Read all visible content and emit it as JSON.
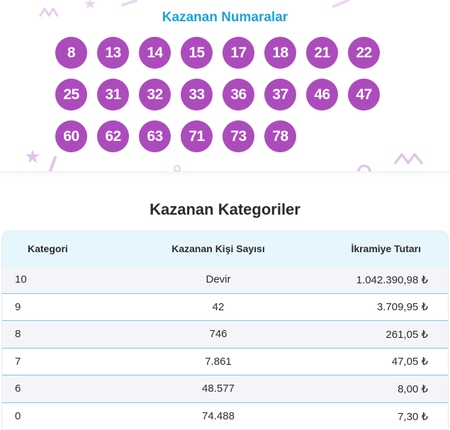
{
  "winning_numbers": {
    "title": "Kazanan Numaralar",
    "numbers": [
      "8",
      "13",
      "14",
      "15",
      "17",
      "18",
      "21",
      "22",
      "25",
      "31",
      "32",
      "33",
      "36",
      "37",
      "46",
      "47",
      "60",
      "62",
      "63",
      "71",
      "73",
      "78"
    ]
  },
  "categories": {
    "title": "Kazanan Kategoriler",
    "headers": {
      "category": "Kategori",
      "winners": "Kazanan Kişi Sayısı",
      "prize": "İkramiye Tutarı"
    },
    "rows": [
      {
        "category": "10",
        "winners": "Devir",
        "prize": "1.042.390,98 ₺"
      },
      {
        "category": "9",
        "winners": "42",
        "prize": "3.709,95 ₺"
      },
      {
        "category": "8",
        "winners": "746",
        "prize": "261,05 ₺"
      },
      {
        "category": "7",
        "winners": "7.861",
        "prize": "47,05 ₺"
      },
      {
        "category": "6",
        "winners": "48.577",
        "prize": "8,00 ₺"
      },
      {
        "category": "0",
        "winners": "74.488",
        "prize": "7,30 ₺"
      }
    ]
  },
  "colors": {
    "ball": "#ac4cbc",
    "title_blue": "#1ba3d8",
    "header_bg": "#e6f6fd",
    "row_divider": "#7cc4e6",
    "decor": "#e3c3ea"
  }
}
